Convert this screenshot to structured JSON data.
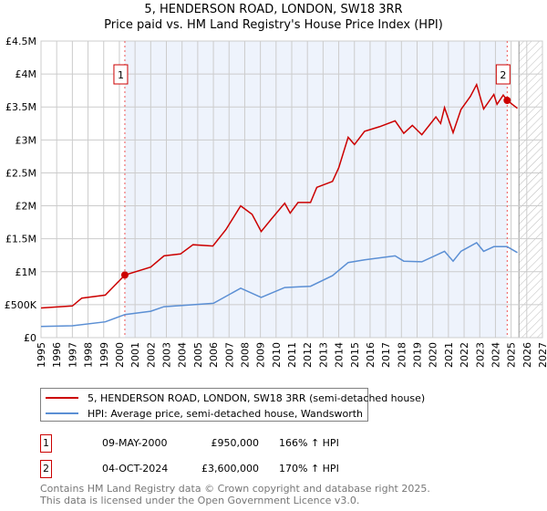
{
  "title_line1": "5, HENDERSON ROAD, LONDON, SW18 3RR",
  "title_line2": "Price paid vs. HM Land Registry's House Price Index (HPI)",
  "chart_data": {
    "type": "line",
    "title": "5, HENDERSON ROAD, LONDON, SW18 3RR — Price paid vs. HM Land Registry's House Price Index (HPI)",
    "xlim": [
      1995,
      2027
    ],
    "ylim": [
      0,
      4500000
    ],
    "x_ticks": [
      "1995",
      "1996",
      "1997",
      "1998",
      "1999",
      "2000",
      "2001",
      "2002",
      "2003",
      "2004",
      "2005",
      "2006",
      "2007",
      "2008",
      "2009",
      "2010",
      "2011",
      "2012",
      "2013",
      "2014",
      "2015",
      "2016",
      "2017",
      "2018",
      "2019",
      "2020",
      "2021",
      "2022",
      "2023",
      "2024",
      "2025",
      "2026",
      "2027"
    ],
    "y_ticks": [
      {
        "value": 0,
        "label": "£0"
      },
      {
        "value": 500000,
        "label": "£500K"
      },
      {
        "value": 1000000,
        "label": "£1M"
      },
      {
        "value": 1500000,
        "label": "£1.5M"
      },
      {
        "value": 2000000,
        "label": "£2M"
      },
      {
        "value": 2500000,
        "label": "£2.5M"
      },
      {
        "value": 3000000,
        "label": "£3M"
      },
      {
        "value": 3500000,
        "label": "£3.5M"
      },
      {
        "value": 4000000,
        "label": "£4M"
      },
      {
        "value": 4500000,
        "label": "£4.5M"
      }
    ],
    "grid": true,
    "series": [
      {
        "name": "5, HENDERSON ROAD, LONDON, SW18 3RR (semi-detached house)",
        "color": "#cc0000",
        "x": [
          1995.0,
          1997.0,
          1997.6,
          1999.1,
          2000.35,
          2002.0,
          2002.85,
          2003.9,
          2004.7,
          2005.97,
          2006.8,
          2007.74,
          2008.47,
          2009.05,
          2009.7,
          2010.55,
          2010.9,
          2011.4,
          2012.2,
          2012.6,
          2013.6,
          2014.0,
          2014.6,
          2015.0,
          2015.65,
          2016.6,
          2017.6,
          2018.15,
          2018.7,
          2019.3,
          2020.2,
          2020.5,
          2020.75,
          2021.3,
          2021.8,
          2022.4,
          2022.8,
          2023.25,
          2023.9,
          2024.1,
          2024.5,
          2024.75,
          2025.4
        ],
        "y": [
          450000,
          480000,
          600000,
          645000,
          950000,
          1070000,
          1240000,
          1270000,
          1410000,
          1390000,
          1640000,
          2000000,
          1870000,
          1610000,
          1800000,
          2040000,
          1890000,
          2050000,
          2050000,
          2280000,
          2370000,
          2580000,
          3040000,
          2930000,
          3130000,
          3200000,
          3290000,
          3100000,
          3220000,
          3080000,
          3350000,
          3250000,
          3490000,
          3110000,
          3460000,
          3660000,
          3840000,
          3470000,
          3690000,
          3540000,
          3680000,
          3600000,
          3480000
        ]
      },
      {
        "name": "HPI: Average price, semi-detached house, Wandsworth",
        "color": "#5b8fd4",
        "x": [
          1995.0,
          1997.0,
          1999.1,
          2000.35,
          2002.0,
          2002.85,
          2006.0,
          2007.74,
          2009.05,
          2010.55,
          2011.4,
          2012.2,
          2013.6,
          2014.6,
          2015.65,
          2017.6,
          2018.15,
          2019.3,
          2020.75,
          2021.3,
          2021.8,
          2022.8,
          2023.25,
          2023.9,
          2024.75,
          2025.4
        ],
        "y": [
          170000,
          180000,
          240000,
          350000,
          400000,
          470000,
          520000,
          750000,
          610000,
          760000,
          770000,
          780000,
          940000,
          1140000,
          1180000,
          1240000,
          1160000,
          1150000,
          1310000,
          1160000,
          1310000,
          1440000,
          1310000,
          1380000,
          1380000,
          1290000
        ]
      }
    ],
    "sales": [
      {
        "id": "1",
        "date": "09-MAY-2000",
        "x": 2000.35,
        "price": 950000,
        "price_label": "£950,000",
        "hpi": "166% ↑ HPI"
      },
      {
        "id": "2",
        "date": "04-OCT-2024",
        "x": 2024.75,
        "price": 3600000,
        "price_label": "£3,600,000",
        "hpi": "170% ↑ HPI"
      }
    ],
    "forecast_start": 2025.5,
    "legend_placement": "bottom"
  },
  "legend": {
    "red_label": "5, HENDERSON ROAD, LONDON, SW18 3RR (semi-detached house)",
    "blue_label": "HPI: Average price, semi-detached house, Wandsworth"
  },
  "footer": {
    "line1": "Contains HM Land Registry data © Crown copyright and database right 2025.",
    "line2": "This data is licensed under the Open Government Licence v3.0."
  }
}
